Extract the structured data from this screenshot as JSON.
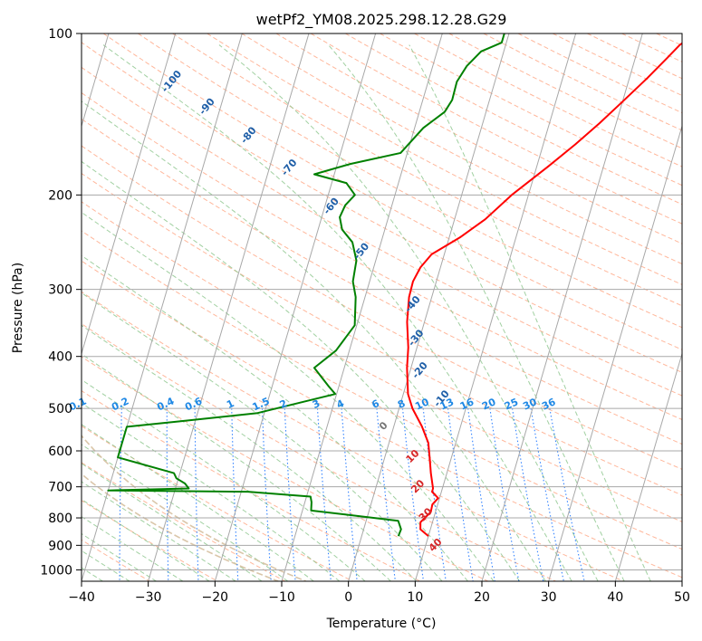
{
  "chart_data": {
    "type": "line",
    "title": "wetPf2_YM08.2025.298.12.28.G29",
    "xlabel": "Temperature (°C)",
    "ylabel": "Pressure (hPa)",
    "xlim": [
      -40,
      50
    ],
    "ylim": [
      1050,
      100
    ],
    "y_scale": "log",
    "x_ticks": [
      "−40",
      "−30",
      "−20",
      "−10",
      "0",
      "10",
      "20",
      "30",
      "40",
      "50"
    ],
    "y_ticks": [
      {
        "p": 100,
        "label": "100"
      },
      {
        "p": 200,
        "label": "200"
      },
      {
        "p": 300,
        "label": "300"
      },
      {
        "p": 400,
        "label": "400"
      },
      {
        "p": 500,
        "label": "500"
      },
      {
        "p": 600,
        "label": "600"
      },
      {
        "p": 700,
        "label": "700"
      },
      {
        "p": 800,
        "label": "800"
      },
      {
        "p": 900,
        "label": "900"
      },
      {
        "p": 1000,
        "label": "1000"
      }
    ],
    "grid": true,
    "series": [
      {
        "color": "#ff0000",
        "points": [
          [
            10.0,
            865
          ],
          [
            8.5,
            840
          ],
          [
            8.2,
            815
          ],
          [
            9.3,
            780
          ],
          [
            9.2,
            755
          ],
          [
            9.8,
            735
          ],
          [
            8.6,
            715
          ],
          [
            8.6,
            705
          ],
          [
            7.6,
            660
          ],
          [
            6.9,
            625
          ],
          [
            5.9,
            580
          ],
          [
            4.2,
            540
          ],
          [
            2.0,
            500
          ],
          [
            0.7,
            470
          ],
          [
            -0.6,
            420
          ],
          [
            -1.3,
            385
          ],
          [
            -2.6,
            345
          ],
          [
            -3.4,
            310
          ],
          [
            -3.5,
            290
          ],
          [
            -3.0,
            273
          ],
          [
            -1.9,
            258
          ],
          [
            1.6,
            240
          ],
          [
            4.6,
            222
          ],
          [
            7.5,
            200
          ],
          [
            11.7,
            177
          ],
          [
            14.8,
            161
          ],
          [
            17.5,
            147
          ],
          [
            20.0,
            134
          ],
          [
            22.7,
            121
          ],
          [
            24.8,
            111
          ],
          [
            26.1,
            105
          ],
          [
            28.0,
            100
          ]
        ]
      },
      {
        "color": "#008000",
        "points": [
          [
            5.5,
            865
          ],
          [
            5.6,
            840
          ],
          [
            4.8,
            810
          ],
          [
            -8.7,
            775
          ],
          [
            -9.0,
            748
          ],
          [
            -9.4,
            730
          ],
          [
            -19.0,
            715
          ],
          [
            -40.0,
            711
          ],
          [
            -28.0,
            705
          ],
          [
            -28.8,
            690
          ],
          [
            -30.3,
            675
          ],
          [
            -30.9,
            660
          ],
          [
            -40.0,
            617
          ],
          [
            -40.0,
            541
          ],
          [
            -32.0,
            528
          ],
          [
            -21.0,
            510
          ],
          [
            -10.2,
            470
          ],
          [
            -11.5,
            455
          ],
          [
            -14.5,
            420
          ],
          [
            -12.0,
            390
          ],
          [
            -10.3,
            350
          ],
          [
            -11.4,
            310
          ],
          [
            -12.5,
            290
          ],
          [
            -12.9,
            265
          ],
          [
            -14.3,
            245
          ],
          [
            -16.4,
            232
          ],
          [
            -17.3,
            220
          ],
          [
            -17.0,
            209
          ],
          [
            -16.0,
            200
          ],
          [
            -17.8,
            190
          ],
          [
            -23.0,
            183
          ],
          [
            -18.0,
            175
          ],
          [
            -11.0,
            167
          ],
          [
            -8.7,
            150
          ],
          [
            -6.2,
            140
          ],
          [
            -5.6,
            133
          ],
          [
            -5.7,
            123
          ],
          [
            -4.9,
            115
          ],
          [
            -3.4,
            108
          ],
          [
            -0.7,
            104
          ],
          [
            -0.7,
            100
          ]
        ]
      }
    ],
    "dry_adiabat_labels": [
      "-100",
      "-90",
      "-80",
      "-70",
      "-60",
      "-50",
      "-40",
      "-30",
      "-20",
      "-10"
    ],
    "mixing_ratio_labels": [
      "0.1",
      "0.2",
      "0.4",
      "0.6",
      "1",
      "1.5",
      "2",
      "3",
      "4",
      "6",
      "8",
      "10",
      "13",
      "16",
      "20",
      "25",
      "30",
      "36"
    ],
    "moist_adiabat_labels": [
      "0",
      "10",
      "20",
      "30",
      "40"
    ],
    "colors": {
      "temperature": "#ff0000",
      "dewpoint": "#008000",
      "dry_adiabat": "#ff9f7a",
      "moist_adiabat": "#90c890",
      "mixing_ratio": "#1f77ff",
      "dry_adiabat_label": "#1f5fa8",
      "mixing_ratio_label": "#1e88e5",
      "moist_adiabat_label": "#d62728",
      "moist_zero_label": "#777777",
      "isotherm": "#a8a8a8",
      "isobar": "#a8a8a8",
      "tan_curve": "#d6c0a0"
    }
  }
}
